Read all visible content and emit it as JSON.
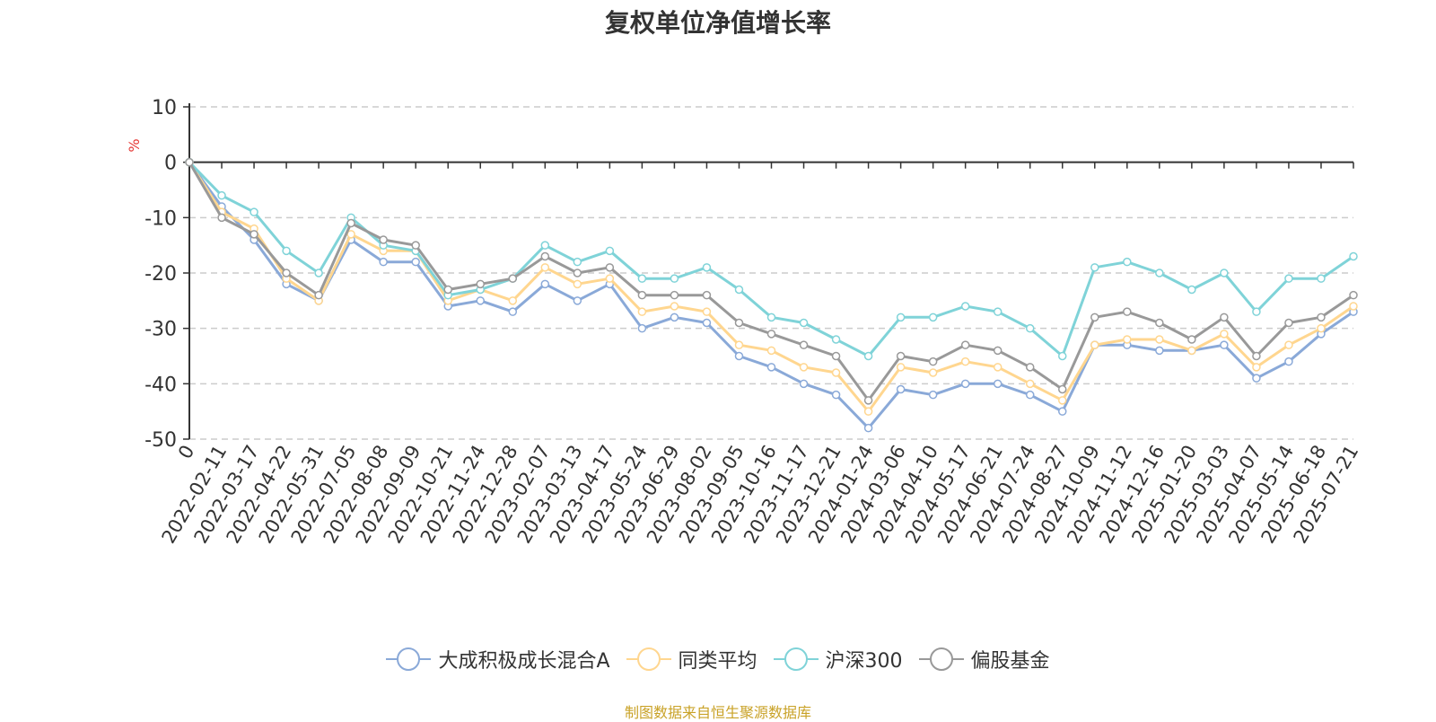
{
  "chart_data": {
    "type": "line",
    "title": "复权单位净值增长率",
    "ylabel": "%",
    "ylim": [
      -50,
      10
    ],
    "yticks": [
      10,
      0,
      -10,
      -20,
      -30,
      -40,
      -50
    ],
    "grid": true,
    "legend_position": "bottom",
    "x_tick_labels": [
      "0",
      "2022-02-11",
      "2022-03-17",
      "2022-04-22",
      "2022-05-31",
      "2022-07-05",
      "2022-08-08",
      "2022-09-09",
      "2022-10-21",
      "2022-11-24",
      "2022-12-28",
      "2023-02-07",
      "2023-03-13",
      "2023-04-17",
      "2023-05-24",
      "2023-06-29",
      "2023-08-02",
      "2023-09-05",
      "2023-10-16",
      "2023-11-17",
      "2023-12-21",
      "2024-01-24",
      "2024-03-06",
      "2024-04-10",
      "2024-05-17",
      "2024-06-21",
      "2024-07-24",
      "2024-08-27",
      "2024-10-09",
      "2024-11-12",
      "2024-12-16",
      "2025-01-20",
      "2025-03-03",
      "2025-04-07",
      "2025-05-14",
      "2025-06-18",
      "2025-07-21"
    ],
    "series": [
      {
        "name": "大成积极成长混合A",
        "color": "#8aa9d8",
        "values": [
          0,
          -8,
          -14,
          -22,
          -25,
          -14,
          -18,
          -18,
          -26,
          -25,
          -27,
          -22,
          -25,
          -22,
          -30,
          -28,
          -29,
          -35,
          -37,
          -40,
          -42,
          -48,
          -41,
          -42,
          -40,
          -40,
          -42,
          -45,
          -33,
          -33,
          -34,
          -34,
          -33,
          -39,
          -36,
          -31,
          -27
        ]
      },
      {
        "name": "同类平均",
        "color": "#ffd68f",
        "values": [
          0,
          -9,
          -12,
          -21,
          -25,
          -13,
          -16,
          -16,
          -25,
          -23,
          -25,
          -19,
          -22,
          -21,
          -27,
          -26,
          -27,
          -33,
          -34,
          -37,
          -38,
          -45,
          -37,
          -38,
          -36,
          -37,
          -40,
          -43,
          -33,
          -32,
          -32,
          -34,
          -31,
          -37,
          -33,
          -30,
          -26
        ]
      },
      {
        "name": "沪深300",
        "color": "#7fd3d8",
        "values": [
          0,
          -6,
          -9,
          -16,
          -20,
          -10,
          -15,
          -16,
          -24,
          -23,
          -21,
          -15,
          -18,
          -16,
          -21,
          -21,
          -19,
          -23,
          -28,
          -29,
          -32,
          -35,
          -28,
          -28,
          -26,
          -27,
          -30,
          -35,
          -19,
          -18,
          -20,
          -23,
          -20,
          -27,
          -21,
          -21,
          -17
        ]
      },
      {
        "name": "偏股基金",
        "color": "#999999",
        "values": [
          0,
          -10,
          -13,
          -20,
          -24,
          -11,
          -14,
          -15,
          -23,
          -22,
          -21,
          -17,
          -20,
          -19,
          -24,
          -24,
          -24,
          -29,
          -31,
          -33,
          -35,
          -43,
          -35,
          -36,
          -33,
          -34,
          -37,
          -41,
          -28,
          -27,
          -29,
          -32,
          -28,
          -35,
          -29,
          -28,
          -24
        ]
      }
    ]
  },
  "footer": {
    "source": "制图数据来自恒生聚源数据库"
  }
}
